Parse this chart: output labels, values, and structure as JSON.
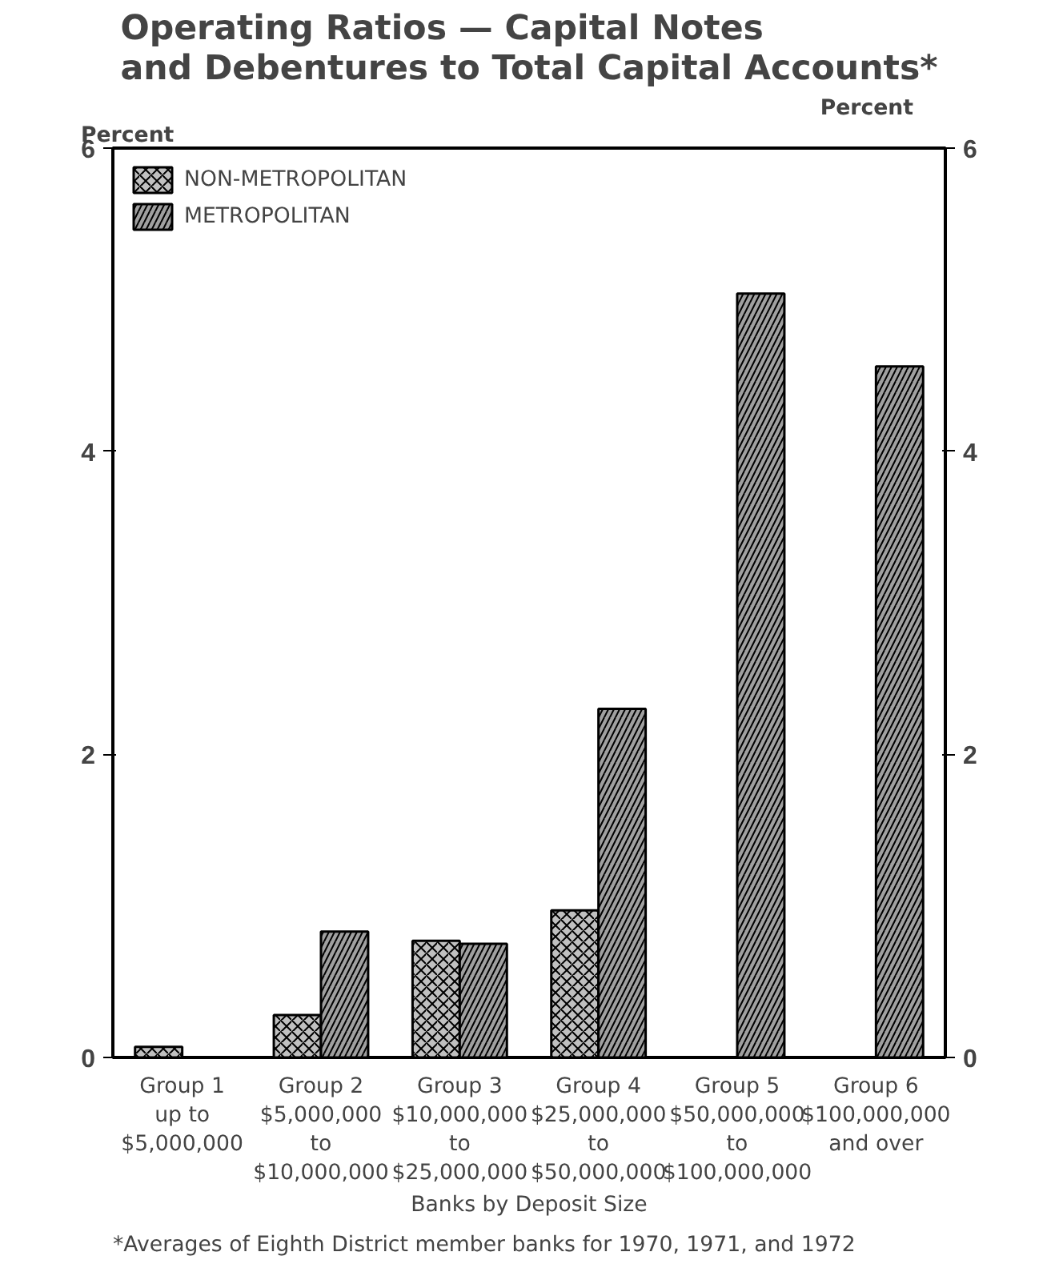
{
  "chart_data": {
    "type": "bar",
    "title": "Operating Ratios — Capital Notes\nand Debentures to Total Capital Accounts*",
    "categories": [
      "Group 1\nup to\n$5,000,000",
      "Group 2\n$5,000,000\nto\n$10,000,000",
      "Group 3\n$10,000,000\nto\n$25,000,000",
      "Group 4\n$25,000,000\nto\n$50,000,000",
      "Group 5\n$50,000,000\nto\n$100,000,000",
      "Group 6\n$100,000,000\nand over"
    ],
    "series": [
      {
        "name": "NON-METROPOLITAN",
        "color": "#c0c0c0",
        "values": [
          0.07,
          0.28,
          0.77,
          0.97,
          null,
          null
        ]
      },
      {
        "name": "METROPOLITAN",
        "color": "#a0a0a0",
        "values": [
          null,
          0.83,
          0.75,
          2.3,
          5.04,
          4.56
        ]
      }
    ],
    "xlabel": "Banks by Deposit Size",
    "ylabel": "Percent",
    "y2label": "Percent",
    "ylim": [
      0,
      6
    ],
    "yticks": [
      0,
      2,
      4,
      6
    ],
    "y2lim": [
      0,
      6
    ],
    "y2ticks": [
      0,
      2,
      4,
      6
    ],
    "grid": false,
    "legend": "top left",
    "annotations": [
      "*Averages of Eighth District member banks for 1970, 1971, and 1972"
    ]
  }
}
